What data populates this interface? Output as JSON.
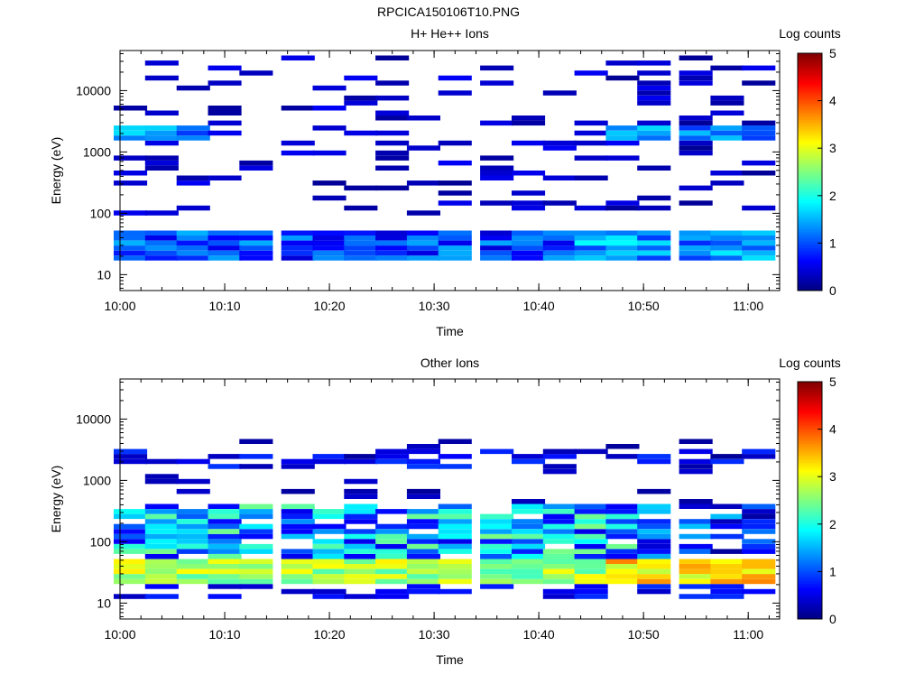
{
  "figure_title": "RPCICA150106T10.PNG",
  "chart_data": [
    {
      "type": "heatmap",
      "title": "H+ He++ Ions",
      "xlabel": "Time",
      "ylabel": "Energy (eV)",
      "x_ticks": [
        "10:00",
        "10:10",
        "10:20",
        "10:30",
        "10:40",
        "10:50",
        "11:00"
      ],
      "y_ticks": [
        "10",
        "100",
        "1000",
        "10000"
      ],
      "y_scale": "log",
      "ylim": [
        5.5,
        45000
      ],
      "xlim": [
        "10:00",
        "11:03"
      ],
      "colorbar": {
        "label": "Log counts",
        "ticks": [
          "0",
          "1",
          "2",
          "3",
          "4",
          "5"
        ],
        "range": [
          0,
          5
        ],
        "colormap": "jet"
      },
      "time_bins": [
        "10:01",
        "10:04",
        "10:07",
        "10:10",
        "10:13",
        "10:17",
        "10:20",
        "10:23",
        "10:26",
        "10:29",
        "10:32",
        "10:36",
        "10:39",
        "10:42",
        "10:45",
        "10:48",
        "10:51",
        "10:55",
        "10:58",
        "11:01"
      ],
      "profile": "hplus"
    },
    {
      "type": "heatmap",
      "title": "Other Ions",
      "xlabel": "Time",
      "ylabel": "Energy (eV)",
      "x_ticks": [
        "10:00",
        "10:10",
        "10:20",
        "10:30",
        "10:40",
        "10:50",
        "11:00"
      ],
      "y_ticks": [
        "10",
        "100",
        "1000",
        "10000"
      ],
      "y_scale": "log",
      "ylim": [
        5.5,
        45000
      ],
      "xlim": [
        "10:00",
        "11:03"
      ],
      "colorbar": {
        "label": "Log counts",
        "ticks": [
          "0",
          "1",
          "2",
          "3",
          "4",
          "5"
        ],
        "range": [
          0,
          5
        ],
        "colormap": "jet"
      },
      "time_bins": [
        "10:01",
        "10:04",
        "10:07",
        "10:10",
        "10:13",
        "10:17",
        "10:20",
        "10:23",
        "10:26",
        "10:29",
        "10:32",
        "10:36",
        "10:39",
        "10:42",
        "10:45",
        "10:48",
        "10:51",
        "10:55",
        "10:58",
        "11:01"
      ],
      "profile": "other"
    }
  ]
}
